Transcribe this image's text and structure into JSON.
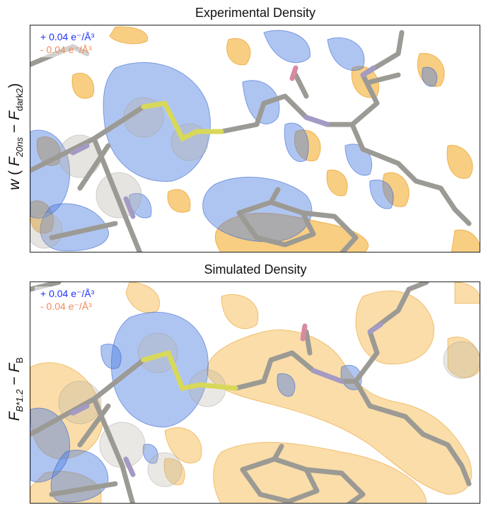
{
  "panels": [
    {
      "title": "Experimental Density",
      "legend": {
        "positive": "+ 0.04 e⁻/Å³",
        "negative": "- 0.04 e⁻/Å³"
      },
      "ylabel": {
        "w": "w",
        "open": "(",
        "a": "F",
        "a_sub": "20ns",
        "minus": "−",
        "b": "F",
        "b_sub": "dark2",
        "close": ")"
      }
    },
    {
      "title": "Simulated Density",
      "legend": {
        "positive": "+ 0.04 e⁻/Å³",
        "negative": "- 0.04 e⁻/Å³"
      },
      "ylabel": {
        "a": "F",
        "a_sub": "B*1.2",
        "minus": "−",
        "b": "F",
        "b_sub": "B"
      }
    }
  ],
  "colors": {
    "positive": "#1f33ff",
    "negative": "#ef8a5c",
    "blue_mesh": "#4d7fe0",
    "orange_mesh": "#f3a51e",
    "stick": "#9c9a94",
    "sulfur": "#d8d85a",
    "nitrogen": "#a49ac4",
    "oxygen": "#d98aa0"
  }
}
